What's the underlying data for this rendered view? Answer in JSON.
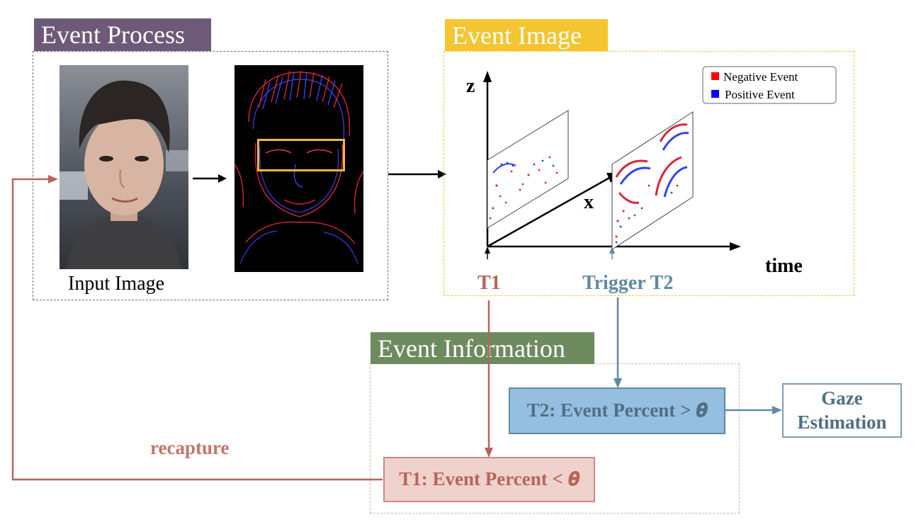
{
  "sections": {
    "event_process": "Event Process",
    "event_image": "Event Image",
    "event_information": "Event Information"
  },
  "input_caption": "Input Image",
  "plot": {
    "axis_z": "z",
    "axis_x": "x",
    "axis_time": "time",
    "t1": "T1",
    "t2": "Trigger T2",
    "legend": [
      {
        "label": "Negative Event",
        "color": "#ff0000"
      },
      {
        "label": "Positive Event",
        "color": "#0000ff"
      }
    ]
  },
  "flow": {
    "t2_condition": "T2: Event Percent > 𝜽",
    "t1_condition": "T1: Event Percent < 𝜽",
    "gaze_line1": "Gaze",
    "gaze_line2": "Estimation",
    "recapture": "recapture"
  },
  "colors": {
    "event_process_tab": "#6d5a78",
    "event_image_tab": "#f4c431",
    "event_information_tab": "#6e8a5f",
    "t1_red": "#b8645a",
    "t2_blue": "#5f8aa3",
    "t2_box_fill": "#95bfe0",
    "t1_box_fill": "#f0d2cd"
  }
}
